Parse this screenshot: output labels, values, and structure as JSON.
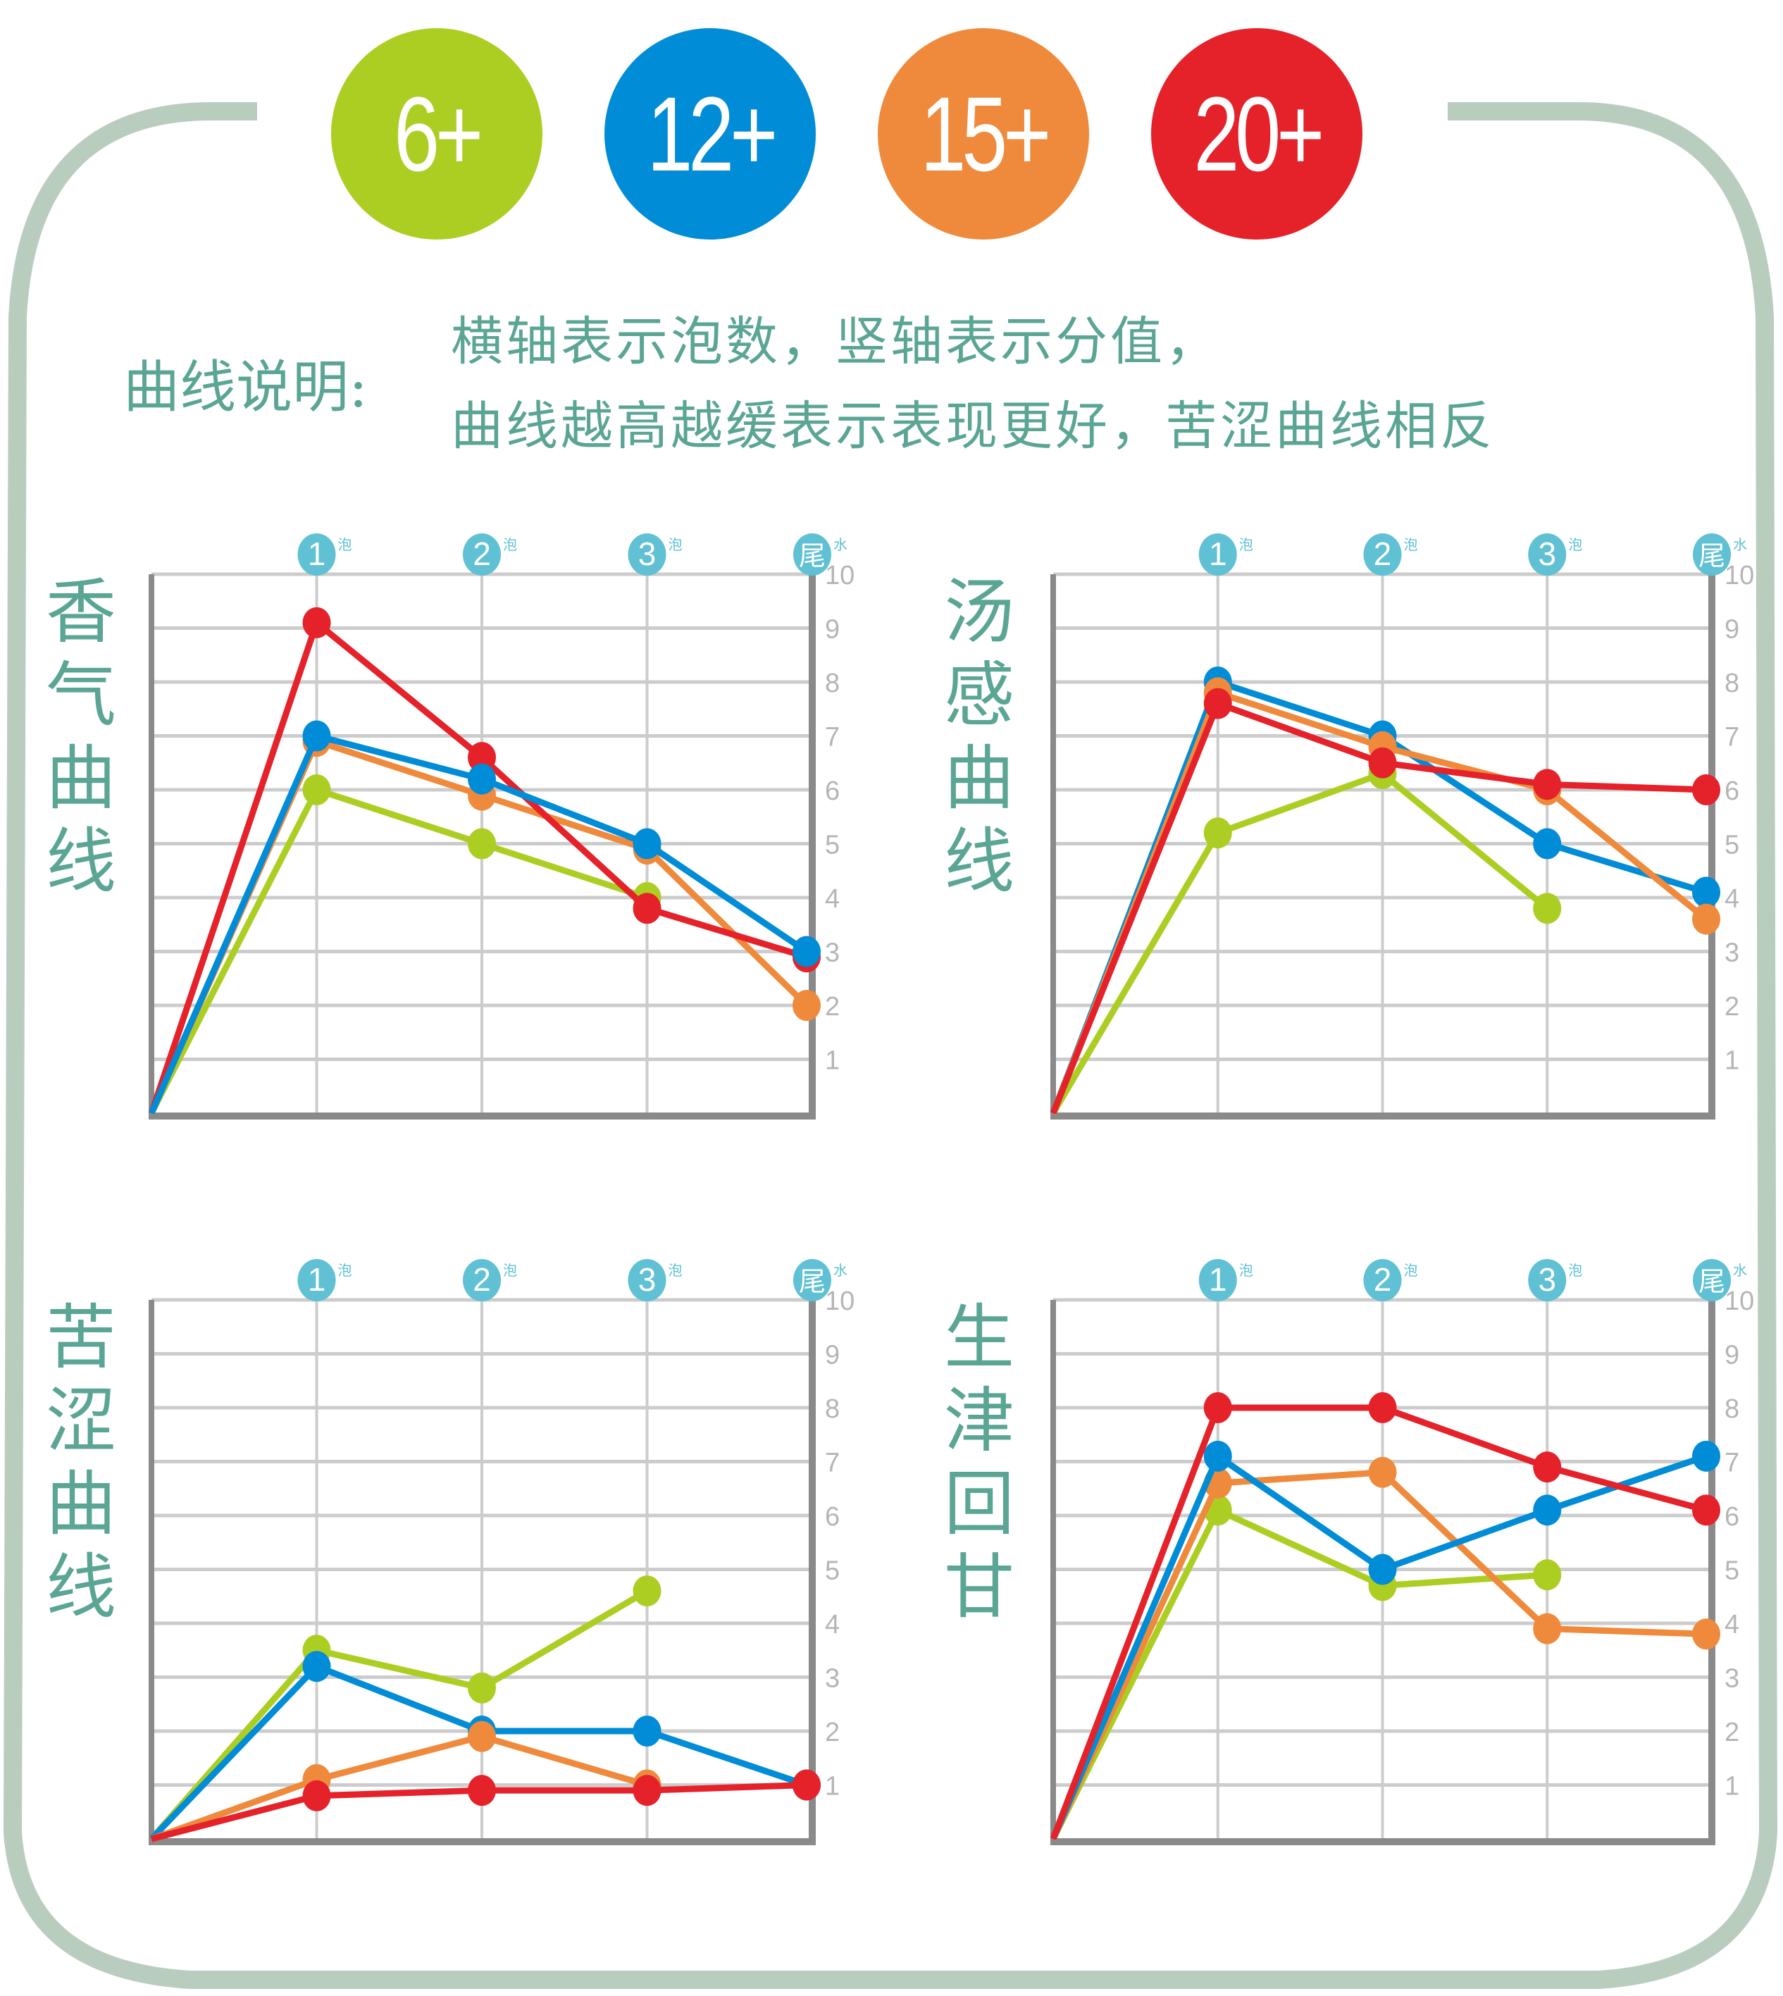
{
  "badges": [
    {
      "label": "6+",
      "color": "#acce22"
    },
    {
      "label": "12+",
      "color": "#008cd6"
    },
    {
      "label": "15+",
      "color": "#ef8a3c"
    },
    {
      "label": "20+",
      "color": "#e5212a"
    }
  ],
  "legend": {
    "title": "曲线说明:",
    "lines": [
      "横轴表示泡数，竖轴表示分值，",
      "曲线越高越缓表示表现更好，苦涩曲线相反"
    ]
  },
  "axis": {
    "x_labels": [
      {
        "main": "1",
        "sub": "泡"
      },
      {
        "main": "2",
        "sub": "泡"
      },
      {
        "main": "3",
        "sub": "泡"
      },
      {
        "main": "尾",
        "sub": "水"
      }
    ],
    "y_ticks": [
      "1",
      "2",
      "3",
      "4",
      "5",
      "6",
      "7",
      "8",
      "9",
      "10"
    ]
  },
  "colors": {
    "frame": "#b9cdbf",
    "title_text": "#5aa594",
    "x_badge": "#5fc1d3",
    "grid": "#cccccc",
    "axis": "#8a8a8a",
    "tick_text": "#b5b5b5"
  },
  "chart_data": [
    {
      "type": "line",
      "title": "香气曲线",
      "categories": [
        "0",
        "1泡",
        "2泡",
        "3泡",
        "尾水"
      ],
      "xlabel": "泡数",
      "ylabel": "分值",
      "ylim": [
        0,
        10
      ],
      "grid": true,
      "legend": [
        "6+",
        "12+",
        "15+",
        "20+"
      ],
      "series": [
        {
          "name": "6+",
          "color": "#acce22",
          "values": [
            0,
            6.0,
            5.0,
            4.0,
            null
          ]
        },
        {
          "name": "15+",
          "color": "#ef8a3c",
          "values": [
            0,
            6.9,
            5.9,
            4.9,
            2.0
          ]
        },
        {
          "name": "20+",
          "color": "#e5212a",
          "values": [
            0,
            9.1,
            6.6,
            3.8,
            2.9
          ]
        },
        {
          "name": "12+",
          "color": "#008cd6",
          "values": [
            0,
            7.0,
            6.2,
            5.0,
            3.0
          ]
        }
      ]
    },
    {
      "type": "line",
      "title": "汤感曲线",
      "categories": [
        "0",
        "1泡",
        "2泡",
        "3泡",
        "尾水"
      ],
      "xlabel": "泡数",
      "ylabel": "分值",
      "ylim": [
        0,
        10
      ],
      "grid": true,
      "legend": [
        "6+",
        "12+",
        "15+",
        "20+"
      ],
      "series": [
        {
          "name": "6+",
          "color": "#acce22",
          "values": [
            0,
            5.2,
            6.3,
            3.8,
            null
          ]
        },
        {
          "name": "12+",
          "color": "#008cd6",
          "values": [
            0,
            8.0,
            7.0,
            5.0,
            4.1
          ]
        },
        {
          "name": "15+",
          "color": "#ef8a3c",
          "values": [
            0,
            7.8,
            6.8,
            6.0,
            3.6
          ]
        },
        {
          "name": "20+",
          "color": "#e5212a",
          "values": [
            0,
            7.6,
            6.5,
            6.1,
            6.0
          ]
        }
      ]
    },
    {
      "type": "line",
      "title": "苦涩曲线",
      "categories": [
        "0",
        "1泡",
        "2泡",
        "3泡",
        "尾水"
      ],
      "xlabel": "泡数",
      "ylabel": "分值",
      "ylim": [
        0,
        10
      ],
      "grid": true,
      "legend": [
        "6+",
        "12+",
        "15+",
        "20+"
      ],
      "series": [
        {
          "name": "6+",
          "color": "#acce22",
          "values": [
            0,
            3.5,
            2.8,
            4.6,
            null
          ]
        },
        {
          "name": "12+",
          "color": "#008cd6",
          "values": [
            0,
            3.2,
            2.0,
            2.0,
            1.0
          ]
        },
        {
          "name": "15+",
          "color": "#ef8a3c",
          "values": [
            0,
            1.1,
            1.9,
            1.0,
            null
          ]
        },
        {
          "name": "20+",
          "color": "#e5212a",
          "values": [
            0,
            0.8,
            0.9,
            0.9,
            1.0
          ]
        }
      ]
    },
    {
      "type": "line",
      "title": "生津回甘",
      "categories": [
        "0",
        "1泡",
        "2泡",
        "3泡",
        "尾水"
      ],
      "xlabel": "泡数",
      "ylabel": "分值",
      "ylim": [
        0,
        10
      ],
      "grid": true,
      "legend": [
        "6+",
        "12+",
        "15+",
        "20+"
      ],
      "series": [
        {
          "name": "6+",
          "color": "#acce22",
          "values": [
            0,
            6.1,
            4.7,
            4.9,
            null
          ]
        },
        {
          "name": "15+",
          "color": "#ef8a3c",
          "values": [
            0,
            6.6,
            6.8,
            3.9,
            3.8
          ]
        },
        {
          "name": "12+",
          "color": "#008cd6",
          "values": [
            0,
            7.1,
            5.0,
            6.1,
            7.1
          ]
        },
        {
          "name": "20+",
          "color": "#e5212a",
          "values": [
            0,
            8.0,
            8.0,
            6.9,
            6.1
          ]
        }
      ]
    }
  ]
}
